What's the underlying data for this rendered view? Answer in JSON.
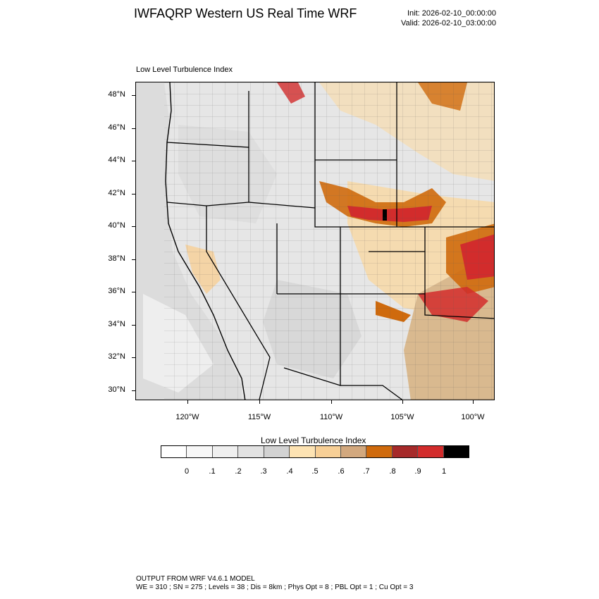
{
  "header": {
    "title": "IWFAQRP Western US Real Time WRF",
    "init": "Init: 2026-02-10_00:00:00",
    "valid": "Valid: 2026-02-10_03:00:00"
  },
  "plot": {
    "subtitle": "Low Level Turbulence Index",
    "lat_labels": [
      "48°N",
      "46°N",
      "44°N",
      "42°N",
      "40°N",
      "38°N",
      "36°N",
      "34°N",
      "32°N",
      "30°N"
    ],
    "lon_labels": [
      "120°W",
      "115°W",
      "110°W",
      "105°W",
      "100°W"
    ]
  },
  "colorbar": {
    "title": "Low Level Turbulence Index",
    "colors": [
      "#ffffff",
      "#f7f7f7",
      "#efefef",
      "#e2e2e2",
      "#d2d2d2",
      "#fde3b3",
      "#f7cf96",
      "#d2a87e",
      "#cf6a0d",
      "#a62a2a",
      "#d22c2c",
      "#000000"
    ],
    "labels": [
      "0",
      ".1",
      ".2",
      ".3",
      ".4",
      ".5",
      ".6",
      ".7",
      ".8",
      ".9",
      "1"
    ]
  },
  "footer": {
    "line1": "OUTPUT FROM WRF V4.6.1 MODEL",
    "line2": "WE = 310 ; SN = 275 ; Levels = 38 ; Dis = 8km ; Phys Opt = 8 ; PBL Opt = 1 ; Cu Opt = 3"
  }
}
